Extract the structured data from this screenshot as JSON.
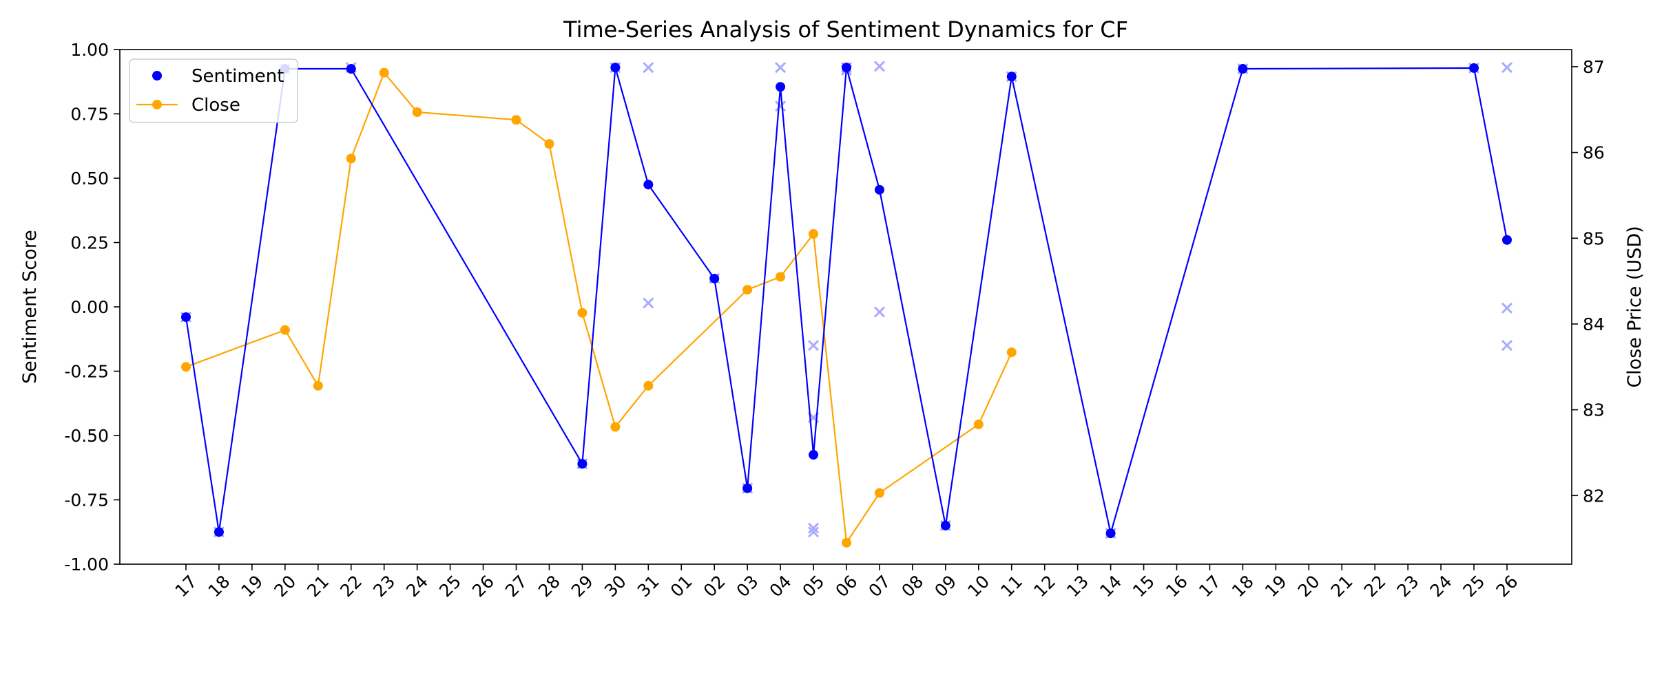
{
  "chart_data": {
    "type": "line",
    "title": "Time-Series Analysis of Sentiment Dynamics for CF",
    "ylabel": "Sentiment Score",
    "y2label": "Close Price (USD)",
    "ylim": [
      -1.0,
      1.0
    ],
    "y2lim": [
      81.2,
      87.2
    ],
    "yticks": [
      "-1.00",
      "-0.75",
      "-0.50",
      "-0.25",
      "0.00",
      "0.25",
      "0.50",
      "0.75",
      "1.00"
    ],
    "y2ticks": [
      "82",
      "83",
      "84",
      "85",
      "86",
      "87"
    ],
    "x_ticks": [
      "17",
      "18",
      "19",
      "20",
      "21",
      "22",
      "23",
      "24",
      "25",
      "26",
      "27",
      "28",
      "29",
      "30",
      "31",
      "01",
      "02",
      "03",
      "04",
      "05",
      "06",
      "07",
      "08",
      "09",
      "10",
      "11",
      "12",
      "13",
      "14",
      "15",
      "16",
      "17",
      "18",
      "19",
      "20",
      "21",
      "22",
      "23",
      "24",
      "25",
      "26"
    ],
    "legend": {
      "position": "top-left",
      "entries": [
        "Sentiment",
        "Close"
      ]
    },
    "grid": false,
    "series": [
      {
        "name": "Sentiment",
        "axis": "left",
        "color": "#0000ff",
        "x": [
          0,
          1,
          3,
          5,
          12,
          13,
          14,
          16,
          17,
          18,
          19,
          20,
          21,
          23,
          25,
          28,
          32,
          39,
          40
        ],
        "y": [
          -0.04,
          -0.875,
          0.925,
          0.925,
          -0.61,
          0.93,
          0.475,
          0.11,
          -0.705,
          0.855,
          -0.575,
          0.93,
          0.455,
          -0.85,
          0.895,
          -0.88,
          0.925,
          0.928,
          0.26
        ]
      },
      {
        "name": "Close",
        "axis": "right",
        "color": "#ffa500",
        "x": [
          0,
          3,
          4,
          5,
          6,
          7,
          10,
          11,
          12,
          13,
          14,
          17,
          18,
          19,
          20,
          21,
          24,
          25
        ],
        "y": [
          83.5,
          83.93,
          83.28,
          85.93,
          86.93,
          86.47,
          86.38,
          86.1,
          84.13,
          82.8,
          83.28,
          84.4,
          84.55,
          85.05,
          81.45,
          82.03,
          82.83,
          83.67
        ]
      }
    ],
    "scatter_points": {
      "marker": "x",
      "color": "#aaaaff",
      "x": [
        0,
        1,
        3,
        5,
        12,
        13,
        14,
        14,
        16,
        17,
        18,
        18,
        19,
        19,
        19,
        19,
        20,
        20,
        21,
        21,
        23,
        25,
        28,
        32,
        39,
        40,
        40,
        40
      ],
      "y": [
        -0.04,
        -0.875,
        0.925,
        0.93,
        -0.61,
        0.93,
        0.93,
        0.015,
        0.11,
        -0.705,
        0.93,
        0.78,
        -0.15,
        -0.43,
        -0.86,
        -0.875,
        0.93,
        0.92,
        0.935,
        -0.02,
        -0.85,
        0.895,
        -0.88,
        0.925,
        0.928,
        0.93,
        -0.005,
        -0.15
      ]
    }
  }
}
